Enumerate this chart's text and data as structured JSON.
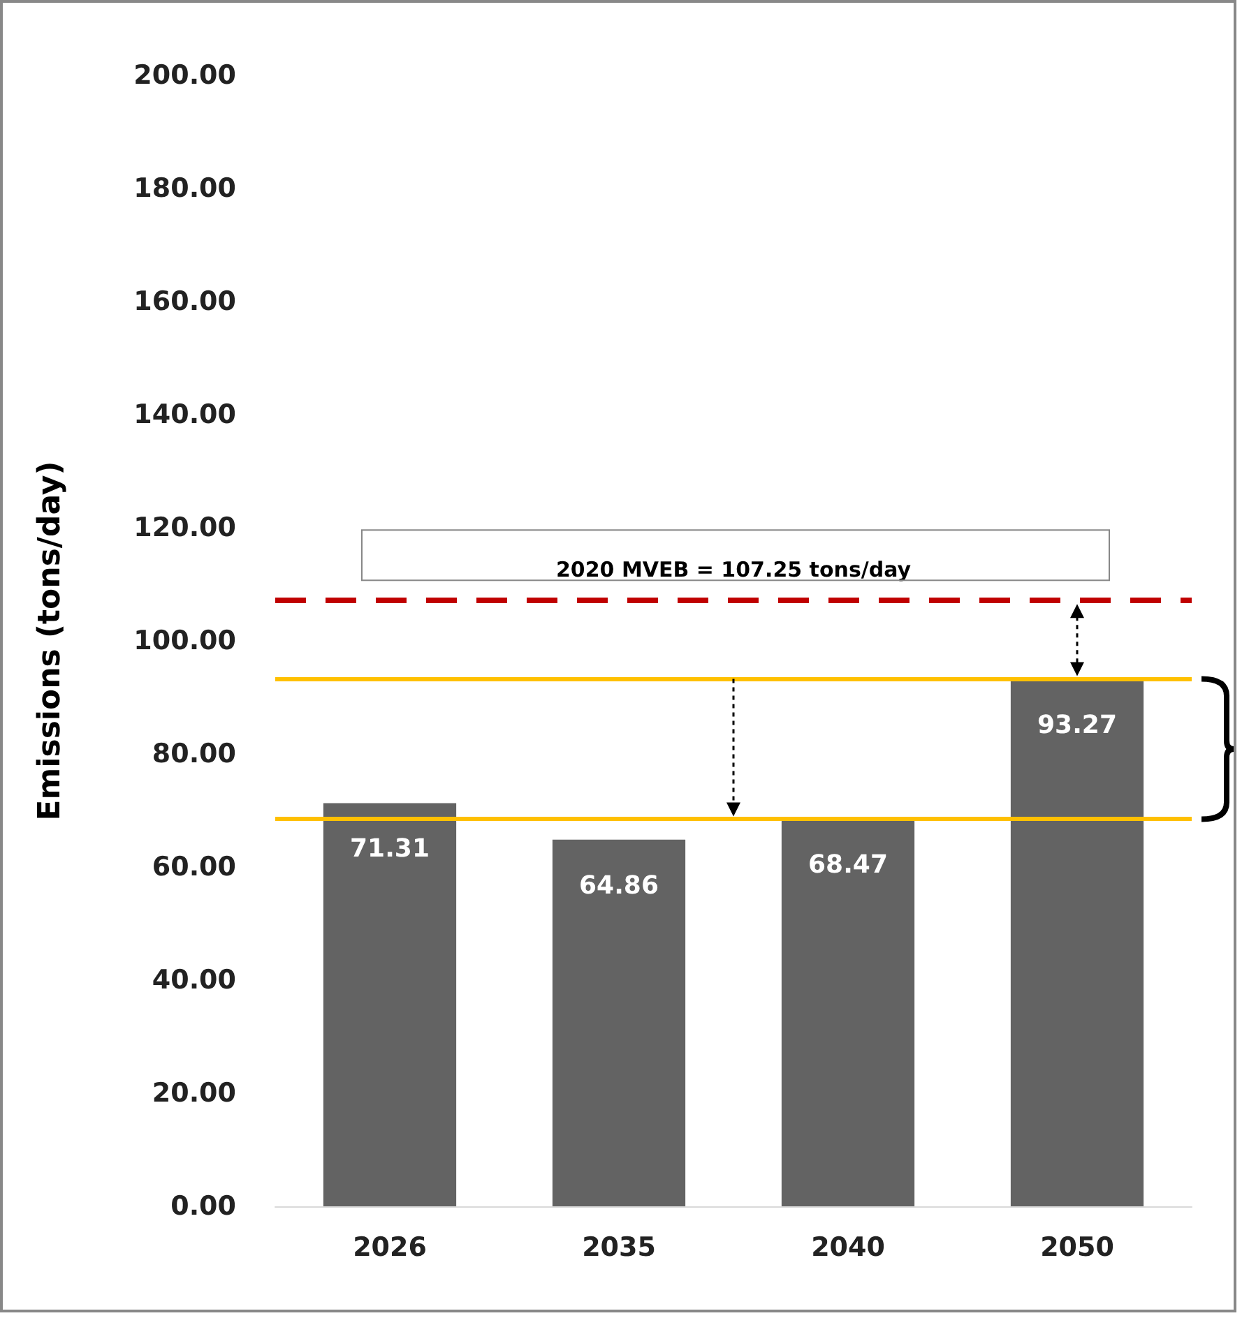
{
  "chart_data": {
    "type": "bar",
    "ylabel": "Emissions (tons/day)",
    "categories": [
      "2026",
      "2035",
      "2040",
      "2050"
    ],
    "values": [
      71.31,
      64.86,
      68.47,
      93.27
    ],
    "color": "#636363",
    "data_labels": true,
    "ylim": [
      0,
      200
    ],
    "yticks": [
      {
        "value": 0,
        "label": "0.00"
      },
      {
        "value": 20,
        "label": "20.00"
      },
      {
        "value": 40,
        "label": "40.00"
      },
      {
        "value": 60,
        "label": "60.00"
      },
      {
        "value": 80,
        "label": "80.00"
      },
      {
        "value": 100,
        "label": "100.00"
      },
      {
        "value": 120,
        "label": "120.00"
      },
      {
        "value": 140,
        "label": "140.00"
      },
      {
        "value": 160,
        "label": "160.00"
      },
      {
        "value": 180,
        "label": "180.00"
      },
      {
        "value": 200,
        "label": "200.00"
      }
    ],
    "grid": false,
    "ref_lines": [
      {
        "axis": "y",
        "value": 107.25,
        "label": "2020 MVEB = 107.25 tons/day",
        "color": "#c00000",
        "line_style": "dashed"
      },
      {
        "axis": "y",
        "value": 93.27,
        "color": "#ffc000",
        "line_style": "solid"
      },
      {
        "axis": "y",
        "value": 68.47,
        "color": "#ffc000",
        "line_style": "solid"
      }
    ]
  }
}
